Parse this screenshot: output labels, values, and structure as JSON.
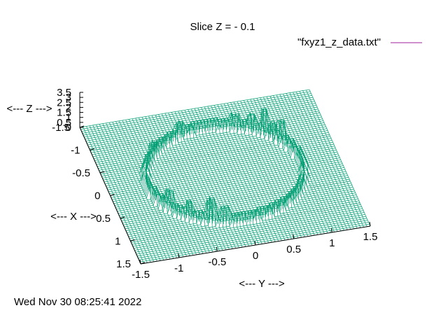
{
  "chart_data": {
    "type": "surface",
    "title": "Slice Z = - 0.1",
    "legend": {
      "label": "\"fxyz1_z_data.txt\"",
      "placement": "top-right",
      "color": "#a0209c"
    },
    "xlabel": "<--- X --->",
    "ylabel": "<--- Y --->",
    "zlabel": "<--- Z --->",
    "x_range": [
      -1.5,
      1.5
    ],
    "y_range": [
      -1.5,
      1.5
    ],
    "z_range": [
      0,
      3.5
    ],
    "x_ticks": [
      "-1.5",
      "-1",
      "-0.5",
      "0",
      "0.5",
      "1",
      "1.5"
    ],
    "y_ticks": [
      "-1.5",
      "-1",
      "-0.5",
      "0",
      "0.5",
      "1",
      "1.5"
    ],
    "z_ticks": [
      "3.5",
      "3",
      "2.5",
      "2",
      "1.5",
      "1",
      "0.5",
      "0"
    ],
    "surface_color": "#009e73",
    "surface": {
      "base_z": 0,
      "ring_radius": 1.0,
      "ring_z": 1.0,
      "spikes": [
        {
          "angle_deg": 120,
          "z": 2.2
        },
        {
          "angle_deg": 128,
          "z": 1.6
        },
        {
          "angle_deg": 135,
          "z": 2.6
        },
        {
          "angle_deg": 145,
          "z": 1.8
        },
        {
          "angle_deg": 158,
          "z": 1.5
        },
        {
          "angle_deg": 200,
          "z": 1.6
        },
        {
          "angle_deg": 230,
          "z": 1.5
        },
        {
          "angle_deg": 300,
          "z": 2.0
        },
        {
          "angle_deg": 318,
          "z": 1.8
        },
        {
          "angle_deg": 335,
          "z": 2.5
        },
        {
          "angle_deg": 345,
          "z": 1.7
        }
      ]
    }
  },
  "timestamp": "Wed Nov 30 08:25:41 2022"
}
